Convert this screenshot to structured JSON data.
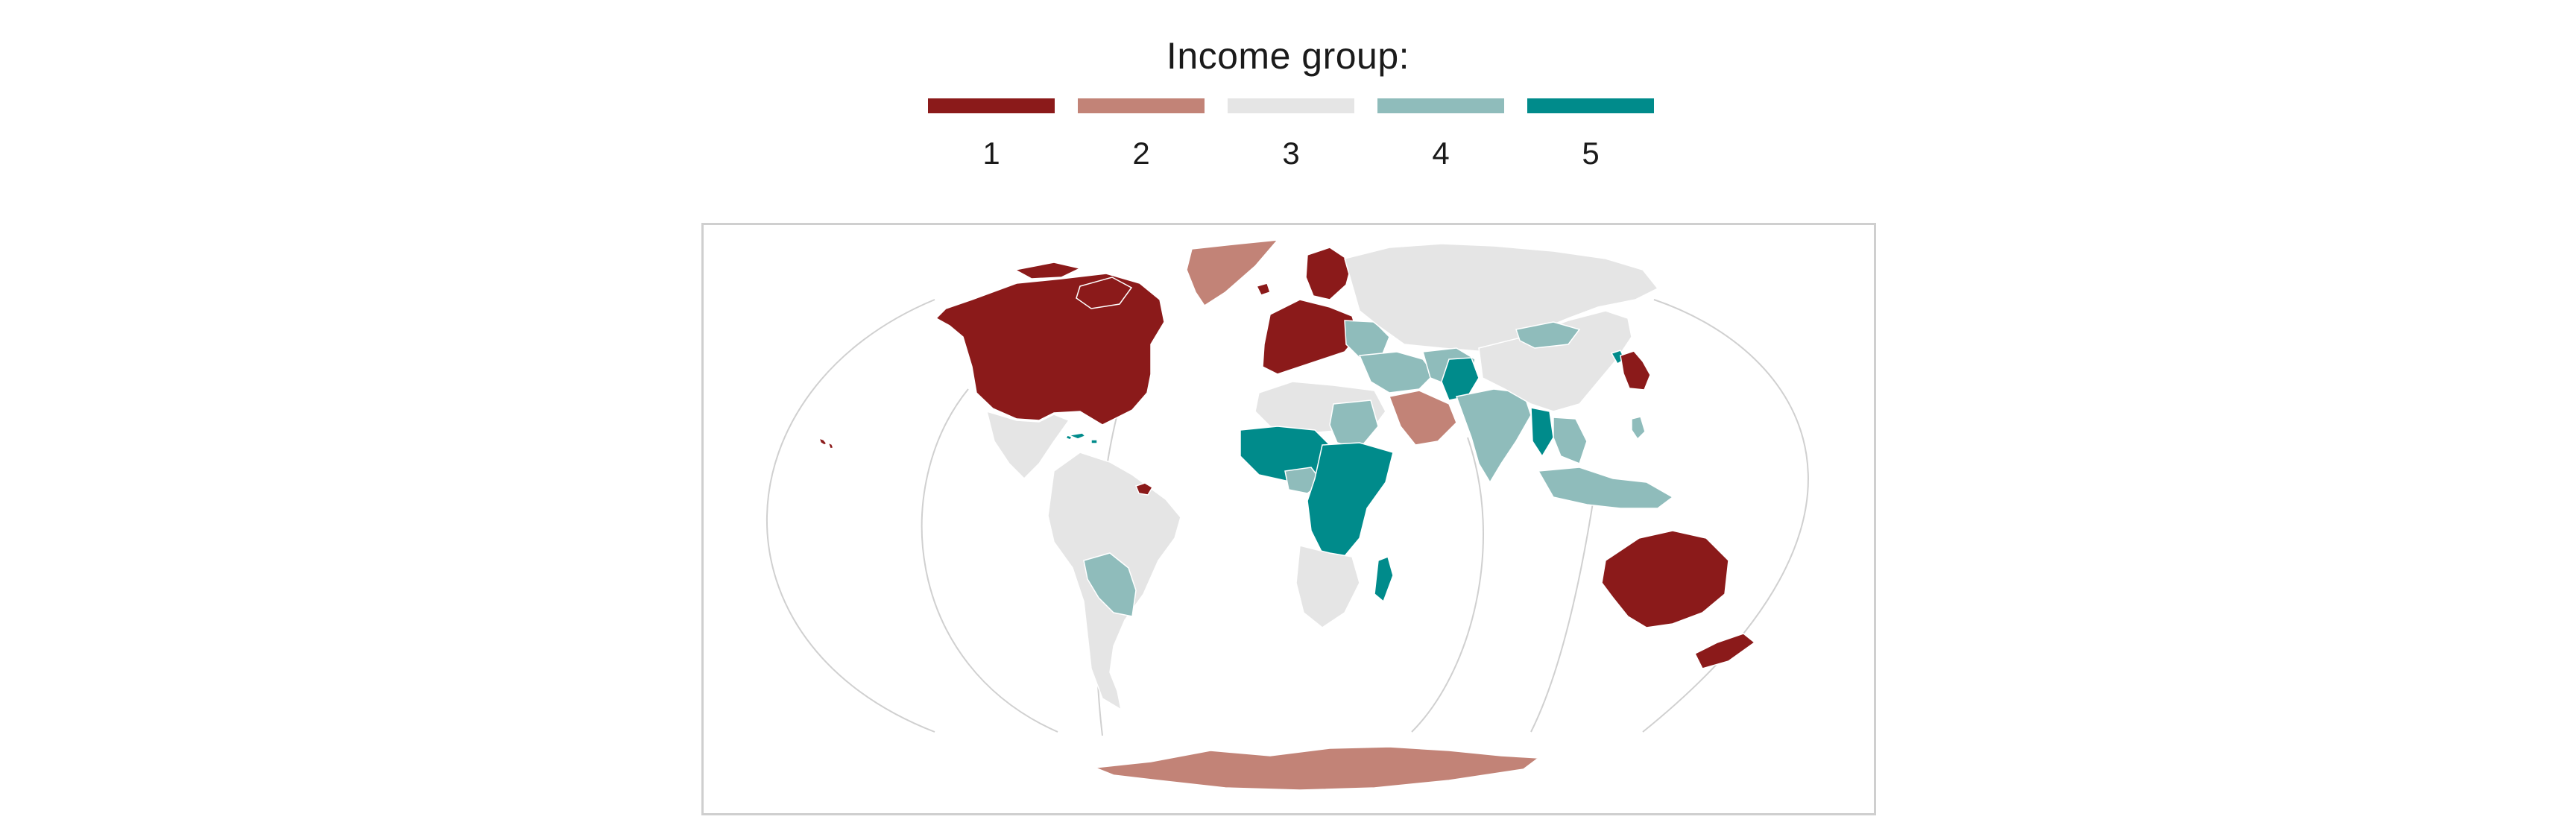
{
  "legend": {
    "title": "Income group:",
    "items": [
      {
        "label": "1",
        "color": "#8b1a1a"
      },
      {
        "label": "2",
        "color": "#c28377"
      },
      {
        "label": "3",
        "color": "#e5e5e5"
      },
      {
        "label": "4",
        "color": "#8fbcbb"
      },
      {
        "label": "5",
        "color": "#008b8b"
      }
    ]
  },
  "map": {
    "projection": "interrupted",
    "graticule_color": "#d0d0d0",
    "regions": [
      {
        "name": "north-america-north",
        "group": "1"
      },
      {
        "name": "greenland",
        "group": "2"
      },
      {
        "name": "central-america",
        "group": "3"
      },
      {
        "name": "caribbean",
        "group": "5"
      },
      {
        "name": "south-america",
        "group": "3"
      },
      {
        "name": "bolivia-paraguay",
        "group": "4"
      },
      {
        "name": "guiana",
        "group": "1"
      },
      {
        "name": "western-europe",
        "group": "1"
      },
      {
        "name": "scandinavia",
        "group": "1"
      },
      {
        "name": "russia",
        "group": "3"
      },
      {
        "name": "eastern-europe",
        "group": "4"
      },
      {
        "name": "north-africa",
        "group": "3"
      },
      {
        "name": "west-africa",
        "group": "5"
      },
      {
        "name": "sahel",
        "group": "4"
      },
      {
        "name": "central-east-africa",
        "group": "5"
      },
      {
        "name": "southern-africa",
        "group": "3"
      },
      {
        "name": "madagascar",
        "group": "5"
      },
      {
        "name": "arabian-peninsula",
        "group": "2"
      },
      {
        "name": "middle-east",
        "group": "4"
      },
      {
        "name": "central-asia",
        "group": "4"
      },
      {
        "name": "afghanistan-pakistan",
        "group": "5"
      },
      {
        "name": "india",
        "group": "4"
      },
      {
        "name": "china",
        "group": "3"
      },
      {
        "name": "mongolia",
        "group": "4"
      },
      {
        "name": "myanmar",
        "group": "5"
      },
      {
        "name": "southeast-asia",
        "group": "4"
      },
      {
        "name": "japan-korea",
        "group": "1"
      },
      {
        "name": "north-korea",
        "group": "5"
      },
      {
        "name": "indonesia",
        "group": "4"
      },
      {
        "name": "australia",
        "group": "1"
      },
      {
        "name": "new-zealand",
        "group": "1"
      },
      {
        "name": "hawaii",
        "group": "1"
      },
      {
        "name": "antarctica",
        "group": "2"
      }
    ]
  }
}
